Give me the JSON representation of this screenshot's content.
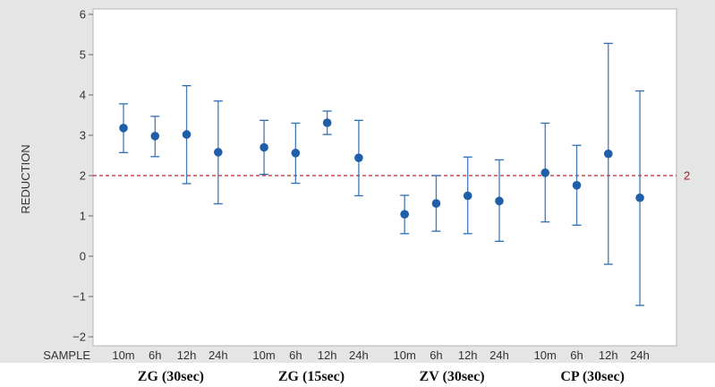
{
  "chart_data": {
    "type": "interval",
    "ylabel": "REDUCTION",
    "xlabel": "SAMPLE",
    "ylim": [
      -2,
      6
    ],
    "yticks": [
      -2,
      -1,
      0,
      1,
      2,
      3,
      4,
      5,
      6
    ],
    "reference_line": {
      "value": 2,
      "label": "2",
      "color": "#c0282d"
    },
    "grid": false,
    "colors": {
      "point": "#1f5ea8",
      "bar": "#2e6db4",
      "plot_bg": "#ffffff",
      "outer_bg": "#e5e5e5"
    },
    "groups": [
      {
        "name": "ZG (30sec)",
        "items": [
          {
            "label": "10m",
            "mean": 3.18,
            "low": 2.57,
            "high": 3.78
          },
          {
            "label": "6h",
            "mean": 2.98,
            "low": 2.47,
            "high": 3.47
          },
          {
            "label": "12h",
            "mean": 3.02,
            "low": 1.8,
            "high": 4.23
          },
          {
            "label": "24h",
            "mean": 2.58,
            "low": 1.3,
            "high": 3.85
          }
        ]
      },
      {
        "name": "ZG (15sec)",
        "items": [
          {
            "label": "10m",
            "mean": 2.7,
            "low": 2.03,
            "high": 3.37
          },
          {
            "label": "6h",
            "mean": 2.56,
            "low": 1.81,
            "high": 3.3
          },
          {
            "label": "12h",
            "mean": 3.31,
            "low": 3.02,
            "high": 3.6
          },
          {
            "label": "24h",
            "mean": 2.44,
            "low": 1.5,
            "high": 3.37
          }
        ]
      },
      {
        "name": "ZV (30sec)",
        "items": [
          {
            "label": "10m",
            "mean": 1.04,
            "low": 0.56,
            "high": 1.51
          },
          {
            "label": "6h",
            "mean": 1.31,
            "low": 0.62,
            "high": 2.0
          },
          {
            "label": "12h",
            "mean": 1.5,
            "low": 0.56,
            "high": 2.46
          },
          {
            "label": "24h",
            "mean": 1.37,
            "low": 0.37,
            "high": 2.39
          }
        ]
      },
      {
        "name": "CP (30sec)",
        "items": [
          {
            "label": "10m",
            "mean": 2.07,
            "low": 0.85,
            "high": 3.3
          },
          {
            "label": "6h",
            "mean": 1.76,
            "low": 0.77,
            "high": 2.75
          },
          {
            "label": "12h",
            "mean": 2.54,
            "low": -0.2,
            "high": 5.28
          },
          {
            "label": "24h",
            "mean": 1.45,
            "low": -1.22,
            "high": 4.1
          }
        ]
      }
    ]
  }
}
